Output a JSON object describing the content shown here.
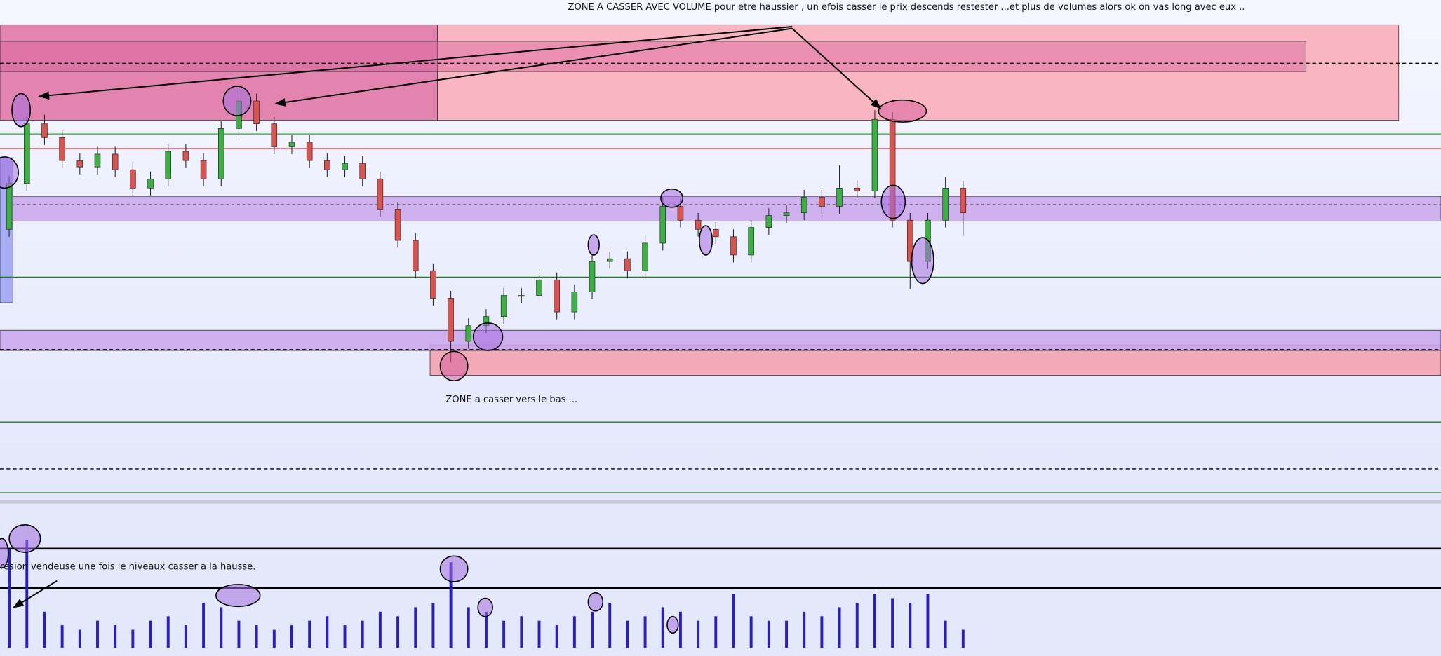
{
  "chart_data": {
    "type": "candlestick",
    "annotations": [
      "ZONE A CASSER AVEC VOLUME  pour etre haussier , un efois casser le prix descends restester ...et plus de volumes alors ok on vas long avec eux ..",
      "ZONE  a casser vers le bas ...",
      "resion vendeuse une fois le niveaux casser a la hausse."
    ],
    "ylim": [
      0,
      545
    ],
    "volume_lim": [
      0,
      160
    ],
    "up_color": "#3cb043",
    "down_color": "#d9534f",
    "volume_color": "#2a1fb8",
    "series": [
      {
        "name": "open",
        "values": [
          295,
          345,
          410,
          395,
          370,
          363,
          377,
          360,
          340,
          350,
          380,
          370,
          350,
          405,
          435,
          410,
          385,
          390,
          370,
          360,
          367,
          350,
          317,
          283,
          250,
          220,
          173,
          190,
          200,
          223,
          223,
          240,
          205,
          227,
          260,
          263,
          250,
          280,
          320,
          305,
          295,
          287,
          267,
          297,
          310,
          313,
          330,
          320,
          340,
          337,
          415,
          305,
          260,
          305,
          340
        ]
      },
      {
        "name": "high",
        "values": [
          353,
          418,
          420,
          403,
          378,
          385,
          385,
          368,
          358,
          388,
          388,
          378,
          413,
          450,
          443,
          418,
          398,
          398,
          378,
          375,
          375,
          358,
          325,
          291,
          258,
          228,
          198,
          208,
          231,
          231,
          248,
          248,
          235,
          268,
          271,
          271,
          288,
          330,
          328,
          313,
          303,
          295,
          305,
          318,
          321,
          338,
          338,
          365,
          348,
          425,
          423,
          313,
          313,
          352,
          348
        ]
      },
      {
        "name": "low",
        "values": [
          287,
          337,
          387,
          362,
          355,
          355,
          352,
          332,
          332,
          342,
          362,
          342,
          342,
          397,
          402,
          377,
          377,
          362,
          352,
          352,
          342,
          309,
          275,
          242,
          212,
          150,
          165,
          182,
          192,
          215,
          215,
          197,
          197,
          219,
          252,
          242,
          242,
          272,
          297,
          287,
          279,
          259,
          259,
          289,
          302,
          305,
          312,
          312,
          329,
          329,
          297,
          230,
          252,
          297,
          288
        ]
      },
      {
        "name": "close",
        "values": [
          345,
          410,
          395,
          370,
          363,
          377,
          360,
          340,
          350,
          380,
          370,
          350,
          405,
          435,
          410,
          385,
          390,
          370,
          360,
          367,
          350,
          317,
          283,
          250,
          220,
          173,
          190,
          200,
          223,
          223,
          240,
          205,
          227,
          260,
          263,
          250,
          280,
          320,
          305,
          295,
          287,
          267,
          297,
          310,
          313,
          330,
          320,
          340,
          337,
          415,
          305,
          260,
          305,
          340,
          313
        ]
      },
      {
        "name": "volume",
        "values": [
          110,
          120,
          40,
          25,
          20,
          30,
          25,
          20,
          30,
          35,
          25,
          50,
          45,
          30,
          25,
          20,
          25,
          30,
          35,
          25,
          30,
          40,
          35,
          45,
          50,
          95,
          45,
          40,
          30,
          35,
          30,
          25,
          35,
          40,
          50,
          30,
          35,
          45,
          40,
          30,
          35,
          60,
          35,
          30,
          30,
          40,
          35,
          45,
          50,
          60,
          55,
          50,
          60,
          30,
          20
        ]
      }
    ]
  }
}
